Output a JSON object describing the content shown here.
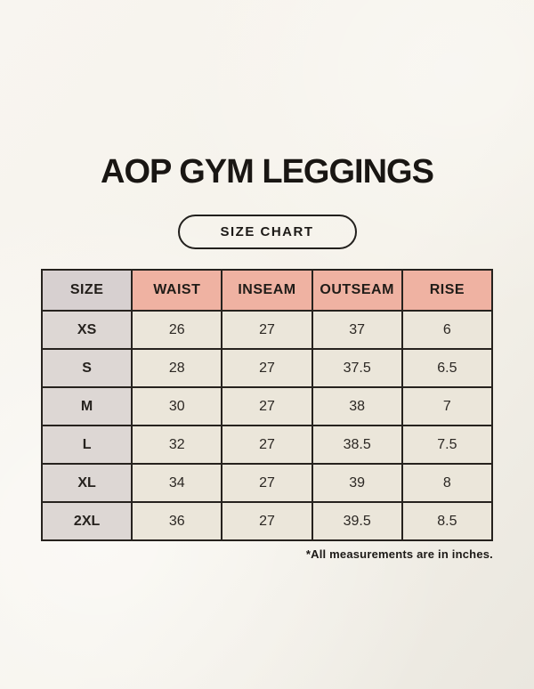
{
  "header": {
    "title": "AOP GYM LEGGINGS",
    "badge": "SIZE CHART"
  },
  "table": {
    "columns": [
      "SIZE",
      "WAIST",
      "INSEAM",
      "OUTSEAM",
      "RISE"
    ],
    "rows": [
      [
        "XS",
        "26",
        "27",
        "37",
        "6"
      ],
      [
        "S",
        "28",
        "27",
        "37.5",
        "6.5"
      ],
      [
        "M",
        "30",
        "27",
        "38",
        "7"
      ],
      [
        "L",
        "32",
        "27",
        "38.5",
        "7.5"
      ],
      [
        "XL",
        "34",
        "27",
        "39",
        "8"
      ],
      [
        "2XL",
        "36",
        "27",
        "39.5",
        "8.5"
      ]
    ],
    "footnote": "*All measurements are in inches."
  },
  "colors": {
    "background": "#f5f2ea",
    "header_accent": "#efb2a2",
    "header_size_bg": "#d7d0d0",
    "row_label_bg": "#ddd7d4",
    "cell_bg": "#ebe6da",
    "border": "#26221e",
    "text": "#1e1b18"
  }
}
